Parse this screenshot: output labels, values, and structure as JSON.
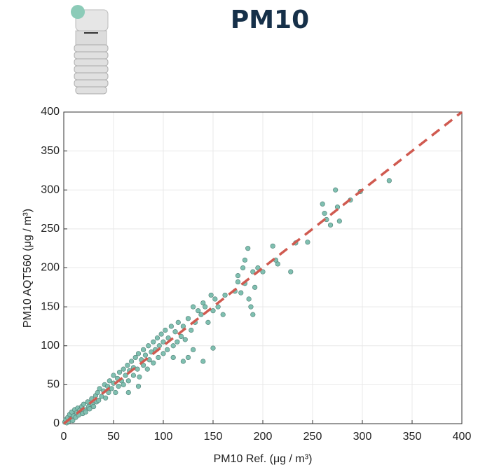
{
  "chart_data": {
    "type": "scatter",
    "title": "PM10",
    "x_label": "PM10 Ref. (μg / m³)",
    "y_label": "PM10 AQT560 (μg / m³)",
    "xlim": [
      0,
      400
    ],
    "ylim": [
      0,
      400
    ],
    "xticks": [
      0,
      50,
      100,
      150,
      200,
      250,
      300,
      350,
      400
    ],
    "yticks": [
      0,
      50,
      100,
      150,
      200,
      250,
      300,
      350,
      400
    ],
    "grid": true,
    "color": "#7fbfb0",
    "identity_line": {
      "x": [
        0,
        400
      ],
      "y": [
        0,
        400
      ],
      "color": "#d05a50"
    },
    "x": [
      1,
      2,
      3,
      4,
      5,
      6,
      7,
      8,
      9,
      10,
      11,
      12,
      13,
      14,
      15,
      16,
      18,
      19,
      20,
      21,
      22,
      24,
      25,
      26,
      28,
      29,
      30,
      32,
      33,
      34,
      35,
      36,
      38,
      40,
      41,
      42,
      44,
      45,
      46,
      48,
      50,
      50,
      52,
      54,
      55,
      56,
      58,
      60,
      60,
      62,
      64,
      65,
      66,
      68,
      70,
      70,
      72,
      74,
      75,
      76,
      78,
      80,
      80,
      82,
      84,
      85,
      86,
      88,
      90,
      90,
      92,
      94,
      95,
      96,
      98,
      100,
      100,
      102,
      104,
      105,
      108,
      110,
      112,
      114,
      115,
      118,
      120,
      122,
      125,
      128,
      130,
      132,
      135,
      138,
      140,
      142,
      145,
      148,
      150,
      152,
      155,
      130,
      140,
      150,
      120,
      125,
      110,
      75,
      65,
      160,
      162,
      175,
      180,
      182,
      185,
      186,
      188,
      190,
      192,
      195,
      200,
      210,
      213,
      215,
      228,
      233,
      245,
      260,
      262,
      264,
      268,
      273,
      275,
      277,
      288,
      298,
      327,
      172,
      182,
      178,
      190,
      175
    ],
    "y": [
      2,
      5,
      1,
      8,
      3,
      12,
      6,
      15,
      4,
      10,
      18,
      8,
      14,
      20,
      11,
      17,
      22,
      13,
      25,
      18,
      15,
      28,
      22,
      19,
      32,
      25,
      22,
      36,
      28,
      40,
      30,
      45,
      35,
      42,
      50,
      33,
      48,
      40,
      55,
      45,
      52,
      62,
      40,
      58,
      48,
      66,
      55,
      50,
      70,
      62,
      75,
      55,
      68,
      80,
      62,
      72,
      85,
      70,
      90,
      60,
      82,
      75,
      95,
      88,
      70,
      100,
      82,
      92,
      78,
      105,
      95,
      110,
      85,
      100,
      115,
      90,
      105,
      120,
      95,
      110,
      125,
      100,
      118,
      105,
      130,
      112,
      125,
      108,
      135,
      120,
      150,
      130,
      145,
      140,
      155,
      150,
      130,
      165,
      145,
      160,
      150,
      95,
      80,
      97,
      80,
      85,
      85,
      48,
      40,
      140,
      165,
      190,
      200,
      210,
      225,
      160,
      150,
      195,
      175,
      200,
      195,
      228,
      210,
      205,
      195,
      232,
      233,
      282,
      270,
      262,
      255,
      300,
      278,
      260,
      287,
      298,
      312,
      170,
      180,
      168,
      140,
      182
    ]
  }
}
